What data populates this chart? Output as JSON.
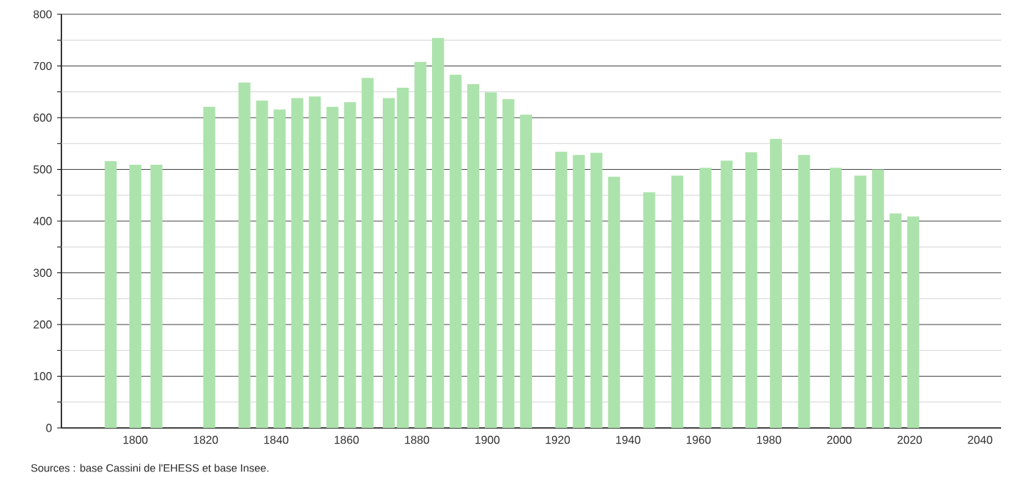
{
  "chart_data": {
    "type": "bar",
    "x": [
      1793,
      1800,
      1806,
      1821,
      1831,
      1836,
      1841,
      1846,
      1851,
      1856,
      1861,
      1866,
      1872,
      1876,
      1881,
      1886,
      1891,
      1896,
      1901,
      1906,
      1911,
      1921,
      1926,
      1931,
      1936,
      1946,
      1954,
      1962,
      1968,
      1975,
      1982,
      1990,
      1999,
      2006,
      2011,
      2016,
      2021
    ],
    "values": [
      516,
      509,
      509,
      621,
      668,
      633,
      616,
      638,
      641,
      621,
      630,
      677,
      638,
      658,
      708,
      754,
      683,
      665,
      649,
      636,
      606,
      534,
      528,
      532,
      486,
      456,
      488,
      503,
      517,
      533,
      559,
      528,
      503,
      488,
      500,
      415,
      409
    ],
    "color": "#ace3ac",
    "xlim": [
      1779,
      2046
    ],
    "ylim": [
      0,
      800
    ],
    "xticks": [
      1800,
      1820,
      1840,
      1860,
      1880,
      1900,
      1920,
      1940,
      1960,
      1980,
      2000,
      2020,
      2040
    ],
    "yticks": [
      0,
      {
        "value": 50,
        "label": null
      },
      100,
      {
        "value": 150,
        "label": null
      },
      200,
      {
        "value": 250,
        "label": null
      },
      300,
      {
        "value": 350,
        "label": null
      },
      400,
      {
        "value": 450,
        "label": null
      },
      500,
      {
        "value": 550,
        "label": null
      },
      600,
      {
        "value": 650,
        "label": null
      },
      700,
      {
        "value": 750,
        "label": null
      },
      800
    ],
    "grid": "y",
    "annotations": [
      "Sources : base Cassini de l'EHESS et base Insee."
    ]
  }
}
